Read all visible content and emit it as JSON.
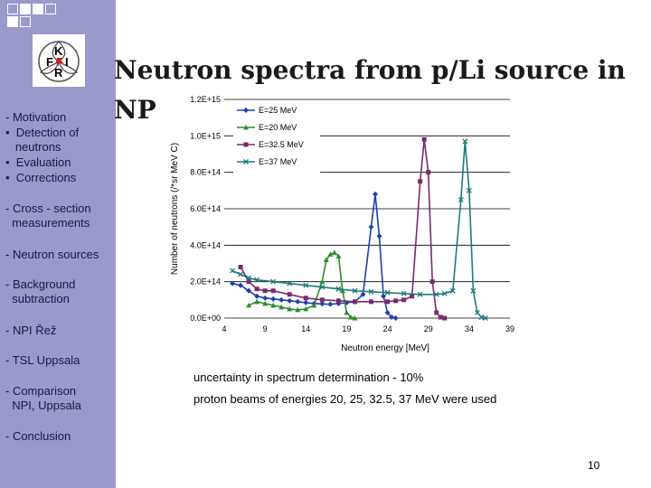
{
  "logo": {
    "letters": [
      "K",
      "F",
      "F",
      "I",
      "R"
    ]
  },
  "sidebar": {
    "items": [
      "- Motivation",
      "•  Detection of\n   neutrons",
      "•  Evaluation",
      "•  Corrections",
      "- Cross - section\n  measurements",
      "- Neutron sources",
      "- Background\n  subtraction",
      "- NPI Řež",
      "- TSL Uppsala",
      "- Comparison\n  NPI, Uppsala",
      "- Conclusion"
    ]
  },
  "slide": {
    "title_line1": "Neutron spectra from p/Li source in",
    "title_line2": "NP",
    "note1": "uncertainty in spectrum determination - 10%",
    "note2": "proton beams of energies 20, 25, 32.5, 37 MeV were used",
    "page_number": "10"
  },
  "chart_data": {
    "type": "line",
    "ylabel": "Number of neutrons (/*sr MeV C)",
    "xlabel": "Neutron energy  [MeV]",
    "xlim": [
      4,
      39
    ],
    "ylim": [
      0,
      1200000000000000.0
    ],
    "x_ticks": [
      "4",
      "9",
      "14",
      "19",
      "24",
      "29",
      "34",
      "39"
    ],
    "y_ticks": [
      "0.0E+00",
      "2.0E+14",
      "4.0E+14",
      "6.0E+14",
      "8.0E+14",
      "1.0E+15",
      "1.2E+15"
    ],
    "legend_position": "top-right",
    "series": [
      {
        "name": "E=25 MeV",
        "color": "#1f3fa8",
        "marker": "diamond",
        "x": [
          5,
          6,
          7,
          8,
          9,
          10,
          11,
          12,
          13,
          14,
          15,
          16,
          17,
          18,
          19,
          20,
          21,
          22,
          22.5,
          23,
          23.5,
          24,
          24.5,
          25
        ],
        "y": [
          190000000000000.0,
          180000000000000.0,
          150000000000000.0,
          120000000000000.0,
          110000000000000.0,
          105000000000000.0,
          100000000000000.0,
          95000000000000.0,
          90000000000000.0,
          85000000000000.0,
          80000000000000.0,
          78000000000000.0,
          76000000000000.0,
          80000000000000.0,
          85000000000000.0,
          90000000000000.0,
          130000000000000.0,
          500000000000000.0,
          680000000000000.0,
          450000000000000.0,
          120000000000000.0,
          30000000000000.0,
          5000000000000.0,
          0.0
        ]
      },
      {
        "name": "E=20 MeV",
        "color": "#2e8b2e",
        "marker": "triangle",
        "x": [
          7,
          8,
          9,
          10,
          11,
          12,
          13,
          14,
          15,
          16,
          16.5,
          17,
          17.5,
          18,
          18.5,
          19,
          19.5,
          20
        ],
        "y": [
          70000000000000.0,
          90000000000000.0,
          80000000000000.0,
          70000000000000.0,
          60000000000000.0,
          50000000000000.0,
          45000000000000.0,
          50000000000000.0,
          70000000000000.0,
          200000000000000.0,
          320000000000000.0,
          350000000000000.0,
          360000000000000.0,
          340000000000000.0,
          150000000000000.0,
          30000000000000.0,
          5000000000000.0,
          0.0
        ]
      },
      {
        "name": "E=32.5 MeV",
        "color": "#7a2a6a",
        "marker": "square",
        "x": [
          6,
          7,
          8,
          9,
          10,
          12,
          14,
          16,
          18,
          20,
          22,
          24,
          25,
          26,
          27,
          28,
          28.5,
          29,
          29.5,
          30,
          30.5,
          31
        ],
        "y": [
          280000000000000.0,
          200000000000000.0,
          160000000000000.0,
          150000000000000.0,
          150000000000000.0,
          130000000000000.0,
          110000000000000.0,
          100000000000000.0,
          95000000000000.0,
          90000000000000.0,
          90000000000000.0,
          90000000000000.0,
          95000000000000.0,
          100000000000000.0,
          120000000000000.0,
          750000000000000.0,
          980000000000000.0,
          800000000000000.0,
          200000000000000.0,
          30000000000000.0,
          5000000000000.0,
          0.0
        ]
      },
      {
        "name": "E=37 MeV",
        "color": "#1f7a7a",
        "marker": "cross",
        "x": [
          5,
          6,
          7,
          8,
          10,
          12,
          14,
          16,
          18,
          20,
          22,
          24,
          26,
          28,
          30,
          31,
          32,
          33,
          33.5,
          34,
          34.5,
          35,
          35.5,
          36
        ],
        "y": [
          260000000000000.0,
          240000000000000.0,
          220000000000000.0,
          210000000000000.0,
          200000000000000.0,
          190000000000000.0,
          180000000000000.0,
          170000000000000.0,
          160000000000000.0,
          150000000000000.0,
          145000000000000.0,
          140000000000000.0,
          135000000000000.0,
          130000000000000.0,
          130000000000000.0,
          135000000000000.0,
          150000000000000.0,
          650000000000000.0,
          970000000000000.0,
          700000000000000.0,
          150000000000000.0,
          30000000000000.0,
          5000000000000.0,
          0.0
        ]
      }
    ]
  }
}
